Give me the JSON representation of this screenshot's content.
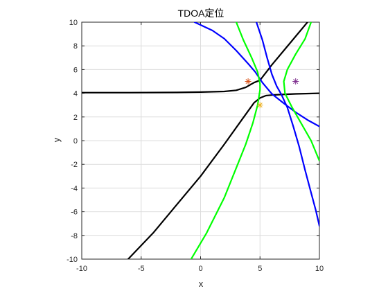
{
  "chart_data": {
    "type": "line",
    "title": "TDOA定位",
    "xlabel": "x",
    "ylabel": "y",
    "xlim": [
      -10,
      10
    ],
    "ylim": [
      -10,
      10
    ],
    "xticks": [
      -10,
      -5,
      0,
      5,
      10
    ],
    "yticks": [
      -10,
      -8,
      -6,
      -4,
      -2,
      0,
      2,
      4,
      6,
      8,
      10
    ],
    "grid": true,
    "colors": {
      "axes": "#262626",
      "grid": "#dcdcdc",
      "black_curve": "#000000",
      "blue_curve": "#0000ff",
      "green_curve": "#00ff00"
    },
    "series": [
      {
        "color": "black",
        "points": [
          [
            -10,
            4.05
          ],
          [
            -6,
            4.05
          ],
          [
            -2,
            4.07
          ],
          [
            0,
            4.1
          ],
          [
            2,
            4.15
          ],
          [
            3,
            4.25
          ],
          [
            3.8,
            4.5
          ],
          [
            4.5,
            4.9
          ],
          [
            5,
            5.1
          ],
          [
            6,
            6.4
          ],
          [
            7,
            7.6
          ],
          [
            8,
            8.8
          ],
          [
            9,
            10
          ]
        ]
      },
      {
        "color": "black",
        "points": [
          [
            -6.1,
            -10
          ],
          [
            -4,
            -7.8
          ],
          [
            -2,
            -5.4
          ],
          [
            0,
            -3
          ],
          [
            2,
            -0.3
          ],
          [
            3.5,
            1.8
          ],
          [
            4.5,
            3.2
          ],
          [
            5,
            3.6
          ],
          [
            5.5,
            3.8
          ],
          [
            6,
            3.85
          ],
          [
            7,
            3.9
          ],
          [
            8,
            3.95
          ],
          [
            10,
            4.0
          ]
        ]
      },
      {
        "color": "blue",
        "points": [
          [
            -0.5,
            10
          ],
          [
            1,
            9.3
          ],
          [
            2,
            8.6
          ],
          [
            3,
            7.6
          ],
          [
            4,
            6.5
          ],
          [
            4.6,
            5.8
          ],
          [
            5.2,
            4.9
          ],
          [
            6,
            3.95
          ],
          [
            7,
            3.15
          ],
          [
            8,
            2.4
          ],
          [
            9,
            1.75
          ],
          [
            10,
            1.2
          ]
        ]
      },
      {
        "color": "blue",
        "points": [
          [
            4.7,
            10
          ],
          [
            5.2,
            8.5
          ],
          [
            5.6,
            7.0
          ],
          [
            6.0,
            5.6
          ],
          [
            6.4,
            4.6
          ],
          [
            6.8,
            3.9
          ],
          [
            7.3,
            2.8
          ],
          [
            7.8,
            1.2
          ],
          [
            8.3,
            -0.5
          ],
          [
            8.8,
            -2.5
          ],
          [
            9.3,
            -4.4
          ],
          [
            9.7,
            -5.9
          ],
          [
            10,
            -7.2
          ]
        ]
      },
      {
        "color": "green",
        "points": [
          [
            3,
            10
          ],
          [
            3.6,
            8.5
          ],
          [
            4.3,
            7.0
          ],
          [
            4.8,
            5.8
          ],
          [
            5.0,
            4.8
          ],
          [
            5.0,
            4.3
          ],
          [
            4.8,
            3.0
          ],
          [
            4.4,
            1.5
          ],
          [
            3.8,
            -0.3
          ],
          [
            3.0,
            -2.3
          ],
          [
            2.0,
            -4.8
          ],
          [
            0.5,
            -7.8
          ],
          [
            -0.8,
            -10
          ]
        ]
      },
      {
        "color": "green",
        "points": [
          [
            9.3,
            10
          ],
          [
            8.8,
            8.6
          ],
          [
            8.0,
            7.3
          ],
          [
            7.3,
            6.0
          ],
          [
            7.0,
            5.0
          ],
          [
            7.1,
            4.0
          ],
          [
            7.7,
            2.8
          ],
          [
            8.5,
            1.4
          ],
          [
            9.3,
            0.0
          ],
          [
            10,
            -1.7
          ]
        ]
      }
    ],
    "markers": [
      {
        "x": 4,
        "y": 5,
        "color": "#d95319",
        "symbol": "*"
      },
      {
        "x": 8,
        "y": 5,
        "color": "#7e2f8e",
        "symbol": "*"
      },
      {
        "x": 5,
        "y": 3,
        "color": "#edb120",
        "symbol": "*"
      }
    ]
  }
}
